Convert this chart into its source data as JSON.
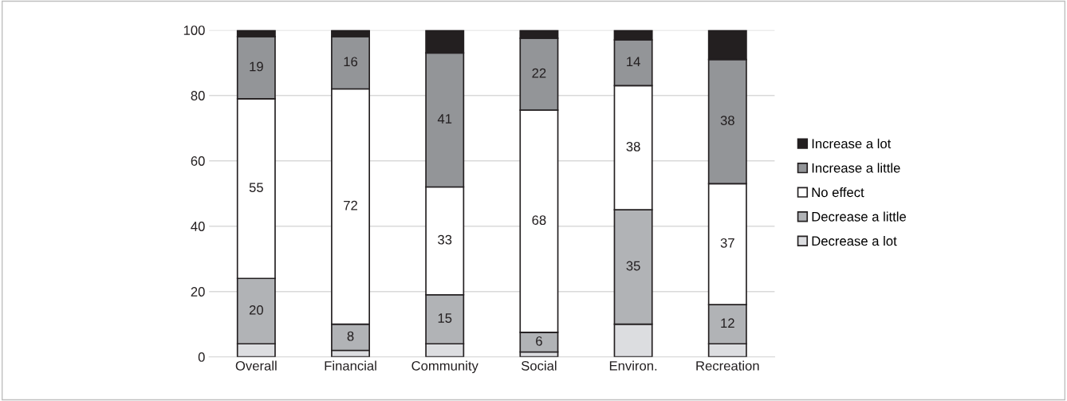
{
  "chart_data": {
    "type": "bar",
    "stacked": true,
    "categories": [
      "Overall",
      "Financial",
      "Community",
      "Social",
      "Environ.",
      "Recreation"
    ],
    "series": [
      {
        "name": "Decrease a lot",
        "color": "#dcdde0",
        "values": [
          4,
          2,
          4,
          1.5,
          10,
          4
        ],
        "value_labels": [
          null,
          null,
          null,
          null,
          null,
          null
        ]
      },
      {
        "name": "Decrease a little",
        "color": "#b1b3b6",
        "values": [
          20,
          8,
          15,
          6,
          35,
          12
        ],
        "value_labels": [
          "20",
          "8",
          "15",
          "6",
          "35",
          "12"
        ]
      },
      {
        "name": "No effect",
        "color": "#ffffff",
        "values": [
          55,
          72,
          33,
          68,
          38,
          37
        ],
        "value_labels": [
          "55",
          "72",
          "33",
          "68",
          "38",
          "37"
        ]
      },
      {
        "name": "Increase a little",
        "color": "#939598",
        "values": [
          19,
          16,
          41,
          22,
          14,
          38
        ],
        "value_labels": [
          "19",
          "16",
          "41",
          "22",
          "14",
          "38"
        ]
      },
      {
        "name": "Increase a lot",
        "color": "#231f20",
        "values": [
          2,
          2,
          7,
          2.5,
          3,
          9
        ],
        "value_labels": [
          null,
          null,
          null,
          null,
          null,
          null
        ]
      }
    ],
    "ylim": [
      0,
      100
    ],
    "yticks": [
      0,
      20,
      40,
      60,
      80,
      100
    ],
    "grid": "y",
    "legend": "right"
  }
}
